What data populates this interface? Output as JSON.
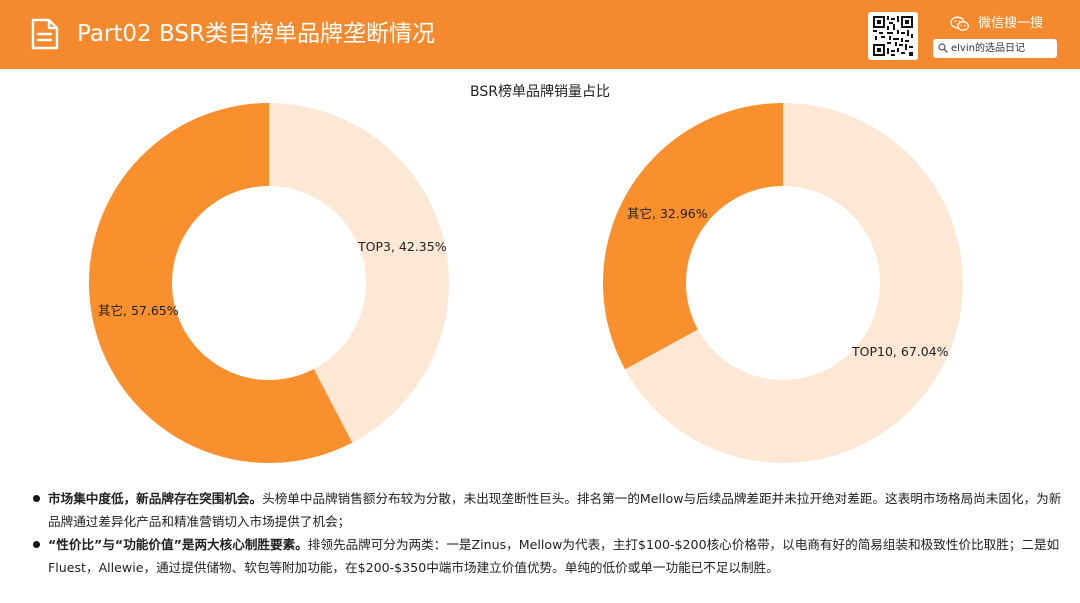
{
  "header": {
    "title": "Part02 BSR类目榜单品牌垄断情况",
    "wechat_label": "微信搜一搜",
    "search_text": "elvin的选品日记"
  },
  "colors": {
    "header_bg": "#f5892e",
    "slice_orange": "#f98f2d",
    "slice_light": "#fde8d5"
  },
  "icons": [
    "document-icon",
    "qr-code-icon",
    "wechat-icon",
    "search-icon"
  ],
  "chart_title": "BSR榜单品牌销量占比",
  "chart_data": [
    {
      "type": "pie",
      "donut": true,
      "slices": [
        {
          "label": "TOP3",
          "value": 42.35,
          "display": "TOP3, 42.35%",
          "color": "#fde8d5"
        },
        {
          "label": "其它",
          "value": 57.65,
          "display": "其它, 57.65%",
          "color": "#f98f2d"
        }
      ]
    },
    {
      "type": "pie",
      "donut": true,
      "slices": [
        {
          "label": "TOP10",
          "value": 67.04,
          "display": "TOP10, 67.04%",
          "color": "#fde8d5"
        },
        {
          "label": "其它",
          "value": 32.96,
          "display": "其它, 32.96%",
          "color": "#f98f2d"
        }
      ]
    }
  ],
  "bullets": [
    {
      "lead": "市场集中度低，新品牌存在突围机会。",
      "text": "头榜单中品牌销售额分布较为分散，未出现垄断性巨头。排名第一的Mellow与后续品牌差距并未拉开绝对差距。这表明市场格局尚未固化，为新品牌通过差异化产品和精准营销切入市场提供了机会；"
    },
    {
      "lead": "“性价比”与“功能价值”是两大核心制胜要素。",
      "text": "排领先品牌可分为两类：一是Zinus，Mellow为代表，主打$100-$200核心价格带，以电商有好的简易组装和极致性价比取胜；二是如Fluest，Allewie，通过提供储物、软包等附加功能，在$200-$350中端市场建立价值优势。单纯的低价或单一功能已不足以制胜。"
    }
  ]
}
